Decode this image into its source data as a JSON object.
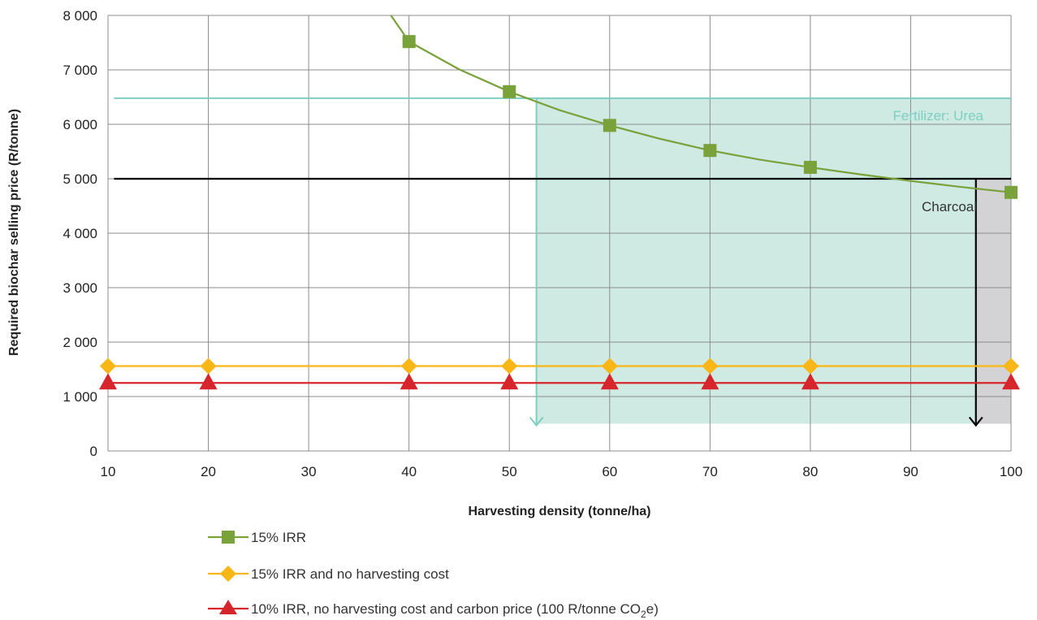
{
  "chart_data": {
    "type": "line",
    "xlabel": "Harvesting density (tonne/ha)",
    "ylabel": "Required biochar selling price (R/tonne)",
    "xlim": [
      10,
      100
    ],
    "ylim": [
      0,
      8000
    ],
    "x_ticks": [
      "10",
      "20",
      "30",
      "40",
      "50",
      "60",
      "70",
      "80",
      "90",
      "100"
    ],
    "y_ticks": [
      "0",
      "1 000",
      "2 000",
      "3 000",
      "4 000",
      "5 000",
      "6 000",
      "7 000",
      "8 000"
    ],
    "grid": true,
    "series": [
      {
        "name": "15% IRR",
        "color": "#7aa23a",
        "marker": "square",
        "x": [
          40,
          50,
          60,
          70,
          80,
          100
        ],
        "y": [
          7520,
          6600,
          5980,
          5520,
          5210,
          4750
        ],
        "curve_x": [
          38.2,
          40,
          45,
          50,
          55,
          60,
          65,
          70,
          75,
          80,
          85,
          90,
          95,
          100
        ],
        "curve_y": [
          8000,
          7520,
          7010,
          6600,
          6260,
          5980,
          5735,
          5520,
          5350,
          5210,
          5080,
          4960,
          4850,
          4750
        ]
      },
      {
        "name": "15% IRR and no harvesting cost",
        "color": "#f8b716",
        "marker": "diamond",
        "x": [
          10,
          20,
          40,
          50,
          60,
          70,
          80,
          100
        ],
        "y": [
          1560,
          1560,
          1560,
          1560,
          1560,
          1560,
          1560,
          1560
        ]
      },
      {
        "name_prefix": "10% IRR, no harvesting cost and carbon price (100 R/tonne CO",
        "name_sub": "2",
        "name_suffix": "e)",
        "color": "#d7262b",
        "marker": "triangle",
        "x": [
          10,
          20,
          40,
          50,
          60,
          70,
          80,
          100
        ],
        "y": [
          1250,
          1250,
          1250,
          1250,
          1250,
          1250,
          1250,
          1250
        ]
      }
    ],
    "annotations": [
      {
        "label": "Fertilizer: Urea",
        "color": "#7ccfc1",
        "fill": "#cfe9e3",
        "price": 6480,
        "x_from": 10.6,
        "region_x": [
          52.7,
          100
        ],
        "region_y": [
          500,
          6480
        ]
      },
      {
        "label": "Charcoal",
        "color": "#000000",
        "fill": "#d3d3d6",
        "price": 5000,
        "x_from": 10.6,
        "region_x": [
          96.5,
          100
        ],
        "region_y": [
          500,
          5000
        ]
      }
    ]
  }
}
